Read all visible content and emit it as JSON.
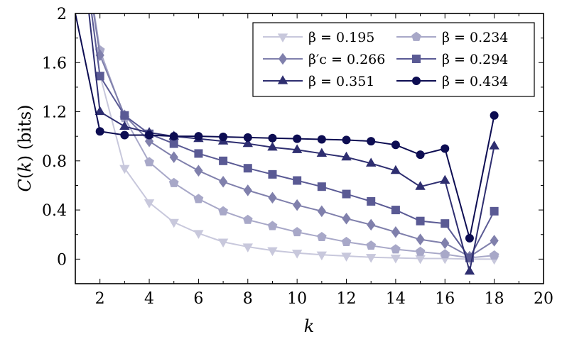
{
  "chart_data": {
    "type": "line",
    "xlabel": "k",
    "ylabel": "C(k) (bits)",
    "xlim": [
      1,
      20
    ],
    "ylim": [
      -0.2,
      2
    ],
    "xticks": [
      2,
      4,
      6,
      8,
      10,
      12,
      14,
      16,
      18,
      20
    ],
    "yticks": [
      0,
      0.4,
      0.8,
      1.2,
      1.6,
      2
    ],
    "ytick_labels": [
      "0",
      "0.4",
      "0.8",
      "1.2",
      "1.6",
      "2"
    ],
    "grid": false,
    "legend_position": "top-right",
    "x": [
      1,
      2,
      3,
      4,
      5,
      6,
      7,
      8,
      9,
      10,
      11,
      12,
      13,
      14,
      15,
      16,
      17,
      18
    ],
    "series": [
      {
        "name": "β = 0.195",
        "color": "#c8c8dc",
        "marker": "triangle-down",
        "values": [
          3.0,
          1.5,
          0.74,
          0.46,
          0.3,
          0.21,
          0.14,
          0.1,
          0.07,
          0.05,
          0.035,
          0.025,
          0.015,
          0.01,
          0.005,
          0.005,
          0.0,
          0.0
        ]
      },
      {
        "name": "β = 0.234",
        "color": "#a8a8c8",
        "marker": "pentagon",
        "values": [
          3.0,
          1.7,
          1.15,
          0.79,
          0.62,
          0.49,
          0.39,
          0.32,
          0.27,
          0.22,
          0.18,
          0.14,
          0.11,
          0.08,
          0.06,
          0.04,
          0.01,
          0.03
        ]
      },
      {
        "name": "β′c = 0.266",
        "color": "#8080ac",
        "marker": "diamond",
        "values": [
          3.0,
          1.66,
          1.17,
          0.96,
          0.83,
          0.72,
          0.63,
          0.56,
          0.5,
          0.44,
          0.39,
          0.33,
          0.28,
          0.22,
          0.16,
          0.13,
          0.02,
          0.15
        ]
      },
      {
        "name": "β = 0.294",
        "color": "#5a5a94",
        "marker": "square",
        "values": [
          3.0,
          1.49,
          1.17,
          1.02,
          0.94,
          0.86,
          0.8,
          0.74,
          0.69,
          0.64,
          0.59,
          0.53,
          0.47,
          0.4,
          0.31,
          0.29,
          0.01,
          0.39
        ]
      },
      {
        "name": "β = 0.351",
        "color": "#2e2e70",
        "marker": "triangle-up",
        "values": [
          3.0,
          1.2,
          1.08,
          1.03,
          1.0,
          0.98,
          0.96,
          0.94,
          0.91,
          0.89,
          0.86,
          0.83,
          0.78,
          0.72,
          0.59,
          0.64,
          -0.1,
          0.92
        ]
      },
      {
        "name": "β = 0.434",
        "color": "#0d0d52",
        "marker": "circle",
        "values": [
          2.0,
          1.04,
          1.01,
          1.01,
          1.0,
          1.0,
          0.995,
          0.99,
          0.985,
          0.98,
          0.975,
          0.97,
          0.96,
          0.93,
          0.85,
          0.9,
          0.17,
          1.17
        ]
      }
    ],
    "legend_layout": [
      [
        0,
        1
      ],
      [
        2,
        3
      ],
      [
        4,
        5
      ]
    ]
  }
}
